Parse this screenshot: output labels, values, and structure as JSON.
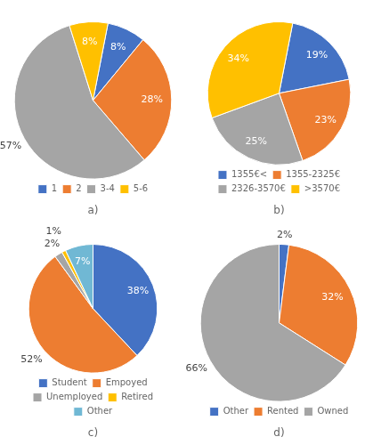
{
  "chart_data": [
    {
      "type": "pie",
      "subtitle": "a)",
      "categories": [
        "1",
        "2",
        "3-4",
        "5-6"
      ],
      "values": [
        8,
        28,
        57,
        8
      ],
      "value_labels": [
        "8%",
        "28%",
        "57%",
        "8%"
      ],
      "colors": [
        "#4472C4",
        "#ED7D31",
        "#A5A5A5",
        "#FFC000"
      ],
      "data_labels": true,
      "legend": "bottom"
    },
    {
      "type": "pie",
      "subtitle": "b)",
      "categories": [
        "1355€<",
        "1355-2325€",
        "2326-3570€",
        ">3570€"
      ],
      "values": [
        19,
        23,
        25,
        34
      ],
      "value_labels": [
        "19%",
        "23%",
        "25%",
        "34%"
      ],
      "colors": [
        "#4472C4",
        "#ED7D31",
        "#A5A5A5",
        "#FFC000"
      ],
      "data_labels": true,
      "legend": "bottom"
    },
    {
      "type": "pie",
      "subtitle": "c)",
      "categories": [
        "Student",
        "Empoyed",
        "Unemployed",
        "Retired",
        "Other"
      ],
      "values": [
        38,
        52,
        2,
        1,
        7
      ],
      "value_labels": [
        "38%",
        "52%",
        "2%",
        "1%",
        "7%"
      ],
      "colors": [
        "#4472C4",
        "#ED7D31",
        "#A5A5A5",
        "#FFC000",
        "#70B8D4"
      ],
      "data_labels": true,
      "legend": "bottom"
    },
    {
      "type": "pie",
      "subtitle": "d)",
      "categories": [
        "Other",
        "Rented",
        "Owned"
      ],
      "values": [
        2,
        32,
        66
      ],
      "value_labels": [
        "2%",
        "32%",
        "66%"
      ],
      "colors": [
        "#4472C4",
        "#ED7D31",
        "#A5A5A5"
      ],
      "data_labels": true,
      "legend": "bottom"
    }
  ]
}
